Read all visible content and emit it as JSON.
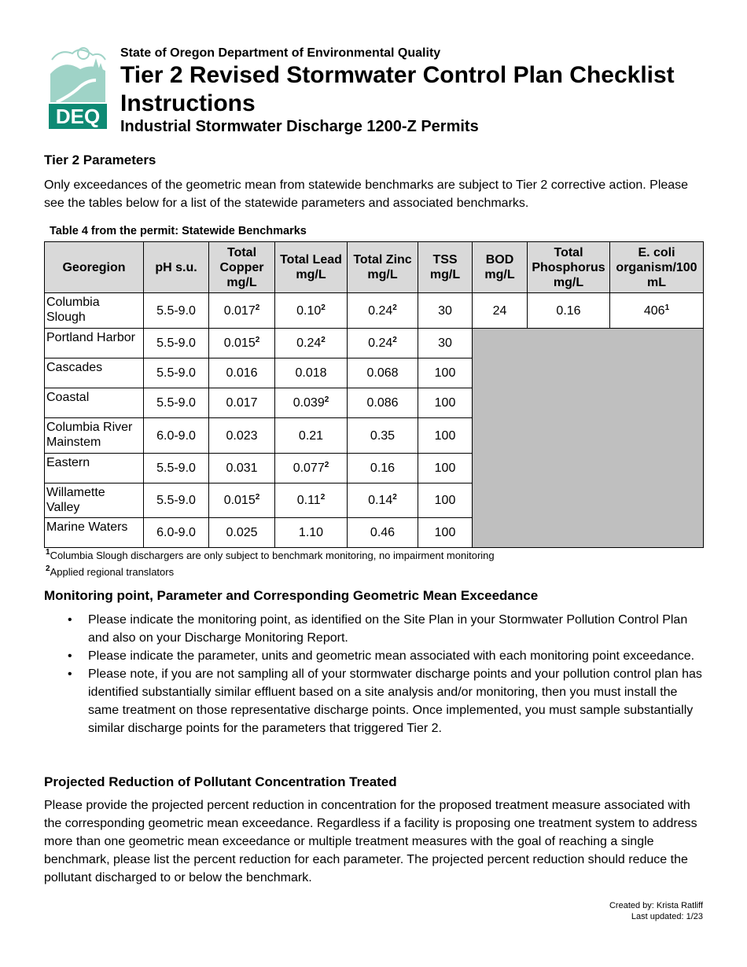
{
  "header": {
    "agency": "State of Oregon Department of Environmental Quality",
    "title": "Tier 2 Revised Stormwater Control Plan Checklist Instructions",
    "subtitle": "Industrial Stormwater Discharge 1200-Z Permits",
    "logo_text": "DEQ",
    "logo_color": "#0e8a74"
  },
  "tier2": {
    "heading": "Tier 2 Parameters",
    "text": "Only exceedances of the geometric mean from statewide benchmarks are subject to Tier 2 corrective action. Please see the tables below for a list of the statewide parameters and associated benchmarks."
  },
  "table": {
    "caption": "Table 4 from the permit: Statewide Benchmarks",
    "headers": [
      "Georegion",
      "pH s.u.",
      "Total Copper mg/L",
      "Total Lead mg/L",
      "Total Zinc mg/L",
      "TSS mg/L",
      "BOD mg/L",
      "Total Phosphorus mg/L",
      "E. coli organism/100 mL"
    ],
    "rows": [
      {
        "region": "Columbia Slough",
        "cells": [
          [
            "5.5-9.0",
            ""
          ],
          [
            "0.017",
            "2"
          ],
          [
            "0.10",
            "2"
          ],
          [
            "0.24",
            "2"
          ],
          [
            "30",
            ""
          ],
          [
            "24",
            ""
          ],
          [
            "0.16",
            ""
          ],
          [
            "406",
            "1"
          ]
        ]
      },
      {
        "region": "Portland Harbor",
        "cells": [
          [
            "5.5-9.0",
            ""
          ],
          [
            "0.015",
            "2"
          ],
          [
            "0.24",
            "2"
          ],
          [
            "0.24",
            "2"
          ],
          [
            "30",
            ""
          ]
        ]
      },
      {
        "region": "Cascades",
        "cells": [
          [
            "5.5-9.0",
            ""
          ],
          [
            "0.016",
            ""
          ],
          [
            "0.018",
            ""
          ],
          [
            "0.068",
            ""
          ],
          [
            "100",
            ""
          ]
        ]
      },
      {
        "region": "Coastal",
        "cells": [
          [
            "5.5-9.0",
            ""
          ],
          [
            "0.017",
            ""
          ],
          [
            "0.039",
            "2"
          ],
          [
            "0.086",
            ""
          ],
          [
            "100",
            ""
          ]
        ]
      },
      {
        "region": "Columbia River Mainstem",
        "cells": [
          [
            "6.0-9.0",
            ""
          ],
          [
            "0.023",
            ""
          ],
          [
            "0.21",
            ""
          ],
          [
            "0.35",
            ""
          ],
          [
            "100",
            ""
          ]
        ]
      },
      {
        "region": "Eastern",
        "cells": [
          [
            "5.5-9.0",
            ""
          ],
          [
            "0.031",
            ""
          ],
          [
            "0.077",
            "2"
          ],
          [
            "0.16",
            ""
          ],
          [
            "100",
            ""
          ]
        ]
      },
      {
        "region": "Willamette Valley",
        "cells": [
          [
            "5.5-9.0",
            ""
          ],
          [
            "0.015",
            "2"
          ],
          [
            "0.11",
            "2"
          ],
          [
            "0.14",
            "2"
          ],
          [
            "100",
            ""
          ]
        ]
      },
      {
        "region": "Marine Waters",
        "cells": [
          [
            "6.0-9.0",
            ""
          ],
          [
            "0.025",
            ""
          ],
          [
            "1.10",
            ""
          ],
          [
            "0.46",
            ""
          ],
          [
            "100",
            ""
          ]
        ]
      }
    ],
    "footnotes": [
      {
        "mark": "1",
        "text": "Columbia Slough  dischargers are only subject to benchmark monitoring, no impairment monitoring"
      },
      {
        "mark": "2",
        "text": "Applied regional translators"
      }
    ]
  },
  "monitoring": {
    "heading": "Monitoring point, Parameter and Corresponding Geometric Mean Exceedance",
    "bullets": [
      "Please indicate the monitoring point, as identified on the Site Plan in your Stormwater Pollution Control Plan and also on your Discharge Monitoring Report.",
      "Please indicate the parameter, units and geometric mean associated with each monitoring point exceedance.",
      "Please note, if you are not sampling all of your stormwater discharge points and your pollution control plan has identified substantially similar effluent based on a site analysis and/or monitoring, then you must install the same treatment on those representative discharge points. Once implemented, you must sample substantially similar discharge points for the parameters that triggered Tier 2."
    ]
  },
  "reduction": {
    "heading": "Projected Reduction of Pollutant Concentration Treated",
    "text": "Please provide the projected percent reduction in concentration for the proposed treatment measure associated with the corresponding geometric mean exceedance. Regardless if a facility is proposing one treatment system to address more than one geometric mean exceedance or multiple treatment measures with the goal of reaching a single benchmark, please list the percent reduction for each parameter. The projected percent reduction should reduce the pollutant discharged to or below the benchmark."
  },
  "footer": {
    "created": "Created by: Krista Ratliff",
    "updated": "Last updated: 1/23"
  }
}
